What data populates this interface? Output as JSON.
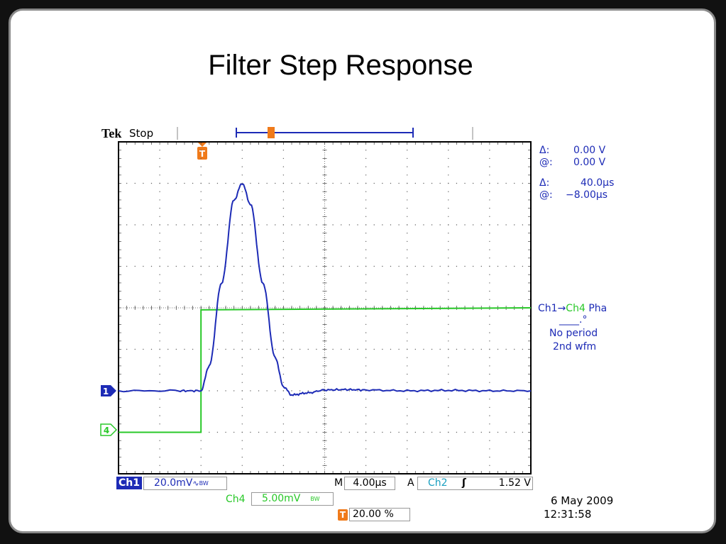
{
  "slide": {
    "title": "Filter Step Response"
  },
  "scope": {
    "brand": "Tek",
    "run_state": "Stop",
    "trigger_marker": "T",
    "cursor": {
      "delta_v_label": "Δ:",
      "delta_v_value": "0.00 V",
      "at_v_label": "@:",
      "at_v_value": "0.00 V",
      "delta_t_label": "Δ:",
      "delta_t_value": "40.0µs",
      "at_t_label": "@:",
      "at_t_value": "−8.00µs"
    },
    "measurement": {
      "source_a": "Ch1",
      "arrow": "→",
      "source_b": "Ch4",
      "type": "Pha",
      "value": "____.°",
      "line1": "No period",
      "line2": "2nd wfm"
    },
    "channel_markers": {
      "ch1": "1",
      "ch4": "4"
    },
    "bottom": {
      "ch1_label": "Ch1",
      "ch1_scale": "20.0mV",
      "ch1_coupling": "∿",
      "bw": "BW",
      "timebase_label": "M",
      "timebase": "4.00µs",
      "trig_label": "A",
      "trig_source": "Ch2",
      "trig_slope": "ʃ",
      "trig_level": "1.52 V",
      "ch4_label": "Ch4",
      "ch4_scale": "5.00mV",
      "trig_pos_marker": "T",
      "trig_pos": "20.00 %",
      "date": "6 May 2009",
      "time": "12:31:58"
    },
    "colors": {
      "ch1": "#1d2bb6",
      "ch4": "#28c828",
      "trigger": "#f07a1a",
      "measure": "#1a9fc0"
    }
  },
  "chart_data": {
    "type": "line",
    "xlabel": "",
    "ylabel": "",
    "x_unit_per_div": "4.00µs",
    "grid": true,
    "series": [
      {
        "name": "Ch1",
        "y_unit_per_div": "20.0mV",
        "x_div": [
          0,
          1.5,
          2.0,
          2.2,
          2.5,
          2.8,
          3.0,
          3.2,
          3.5,
          3.8,
          4.0,
          4.2,
          4.6,
          5.0,
          5.5,
          6.0,
          7.0,
          8.0,
          9.0,
          10.0
        ],
        "y_div": [
          0,
          0,
          0,
          0.6,
          2.6,
          4.6,
          5.0,
          4.5,
          2.6,
          0.8,
          0.1,
          -0.1,
          -0.05,
          0.02,
          0.03,
          0.02,
          0.0,
          0.01,
          0.0,
          0.0
        ]
      },
      {
        "name": "Ch4",
        "y_unit_per_div": "5.00mV",
        "x_div": [
          0,
          2.0,
          2.0,
          10.0
        ],
        "y_div": [
          -1.0,
          -1.0,
          1.95,
          2.0
        ]
      }
    ]
  }
}
